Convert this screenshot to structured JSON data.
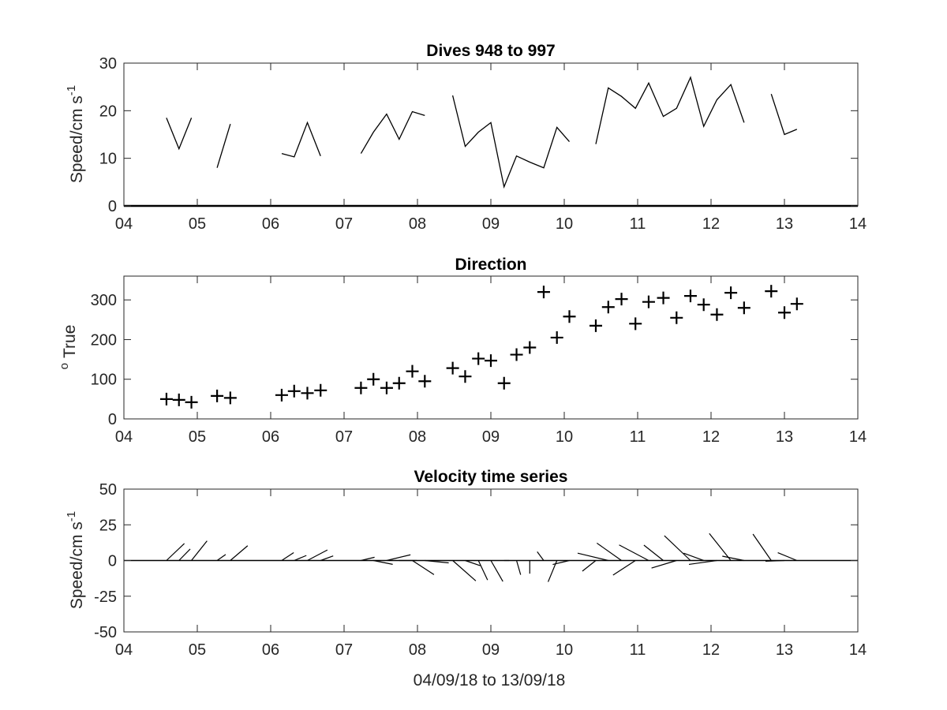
{
  "chart_data": [
    {
      "type": "line",
      "title": "Dives 948 to 997",
      "ylabel": "Speed/cm s",
      "ylabel_exponent": "-1",
      "xlim": [
        4,
        14
      ],
      "ylim": [
        0,
        30
      ],
      "xticks": [
        "04",
        "05",
        "06",
        "07",
        "08",
        "09",
        "10",
        "11",
        "12",
        "13",
        "14"
      ],
      "yticks": [
        "0",
        "10",
        "20",
        "30"
      ],
      "grid": false,
      "series": [
        {
          "x": [
            4.58,
            4.75,
            4.92
          ],
          "y": [
            18.5,
            12,
            18.5
          ]
        },
        {
          "x": [
            5.27,
            5.45
          ],
          "y": [
            8,
            17.2
          ]
        },
        {
          "x": [
            6.15,
            6.32,
            6.5,
            6.68
          ],
          "y": [
            11,
            10.3,
            17.5,
            10.5
          ]
        },
        {
          "x": [
            7.23,
            7.4,
            7.58,
            7.75,
            7.93,
            8.1
          ],
          "y": [
            11,
            15.5,
            19.3,
            14,
            19.8,
            19
          ]
        },
        {
          "x": [
            8.48,
            8.65,
            8.83,
            9.0,
            9.18,
            9.35,
            9.53,
            9.72,
            9.9,
            10.07
          ],
          "y": [
            23.2,
            12.5,
            15.5,
            17.5,
            4,
            10.5,
            9.2,
            8,
            16.5,
            13.5
          ]
        },
        {
          "x": [
            10.43,
            10.6,
            10.78,
            10.97,
            11.15,
            11.35,
            11.53,
            11.72,
            11.9,
            12.08,
            12.27,
            12.45
          ],
          "y": [
            13,
            24.8,
            23,
            20.5,
            25.8,
            18.8,
            20.5,
            27,
            16.7,
            22.3,
            25.5,
            17.5
          ]
        },
        {
          "x": [
            12.82,
            13.0,
            13.17
          ],
          "y": [
            23.5,
            15,
            16.1
          ]
        }
      ]
    },
    {
      "type": "scatter",
      "title": "Direction",
      "ylabel": "True",
      "ylabel_prefix": "o",
      "xlim": [
        4,
        14
      ],
      "ylim": [
        0,
        360
      ],
      "xticks": [
        "04",
        "05",
        "06",
        "07",
        "08",
        "09",
        "10",
        "11",
        "12",
        "13",
        "14"
      ],
      "yticks": [
        "0",
        "100",
        "200",
        "300"
      ],
      "grid": false,
      "marker": "plus",
      "x": [
        4.58,
        4.75,
        4.92,
        5.27,
        5.45,
        6.15,
        6.32,
        6.5,
        6.68,
        7.23,
        7.4,
        7.58,
        7.75,
        7.93,
        8.1,
        8.48,
        8.65,
        8.83,
        9.0,
        9.18,
        9.35,
        9.53,
        9.72,
        9.9,
        10.07,
        10.43,
        10.6,
        10.78,
        10.97,
        11.15,
        11.35,
        11.53,
        11.72,
        11.9,
        12.08,
        12.27,
        12.45,
        12.82,
        13.0,
        13.17
      ],
      "y": [
        50,
        48,
        42,
        58,
        53,
        60,
        70,
        65,
        72,
        78,
        100,
        78,
        90,
        120,
        95,
        128,
        107,
        152,
        147,
        90,
        162,
        180,
        320,
        205,
        258,
        235,
        282,
        302,
        240,
        295,
        305,
        255,
        310,
        288,
        263,
        318,
        280,
        322,
        268,
        290
      ]
    },
    {
      "type": "quiver",
      "title": "Velocity time series",
      "ylabel": "Speed/cm s",
      "ylabel_exponent": "-1",
      "xlabel": "04/09/18 to 13/09/18",
      "xlim": [
        4,
        14
      ],
      "ylim": [
        -50,
        50
      ],
      "xticks": [
        "04",
        "05",
        "06",
        "07",
        "08",
        "09",
        "10",
        "11",
        "12",
        "13",
        "14"
      ],
      "yticks": [
        "-50",
        "-25",
        "0",
        "25",
        "50"
      ],
      "grid": false,
      "baseline": 0,
      "x": [
        4.58,
        4.75,
        4.92,
        5.27,
        5.45,
        6.15,
        6.32,
        6.5,
        6.68,
        7.23,
        7.4,
        7.58,
        7.75,
        7.93,
        8.1,
        8.48,
        8.65,
        8.83,
        9.0,
        9.18,
        9.35,
        9.53,
        9.72,
        9.9,
        10.07,
        10.43,
        10.6,
        10.78,
        10.97,
        11.15,
        11.35,
        11.53,
        11.72,
        11.9,
        12.08,
        12.27,
        12.45,
        12.82,
        13.0,
        13.17
      ],
      "speed": [
        18.5,
        12,
        18.5,
        8,
        17.2,
        11,
        10.3,
        17.5,
        10.5,
        11,
        15.5,
        19.3,
        14,
        19.8,
        19,
        23.2,
        12.5,
        15.5,
        17.5,
        4,
        10.5,
        9.2,
        8,
        16.5,
        13.5,
        13,
        24.8,
        23,
        20.5,
        25.8,
        18.8,
        20.5,
        27,
        16.7,
        22.3,
        25.5,
        17.5,
        23.5,
        15,
        16.1
      ],
      "direction_deg": [
        50,
        48,
        42,
        58,
        53,
        60,
        70,
        65,
        72,
        78,
        100,
        78,
        90,
        120,
        95,
        128,
        107,
        152,
        147,
        90,
        162,
        180,
        320,
        205,
        258,
        235,
        282,
        302,
        240,
        295,
        305,
        255,
        310,
        288,
        263,
        318,
        280,
        322,
        268,
        290
      ]
    }
  ]
}
